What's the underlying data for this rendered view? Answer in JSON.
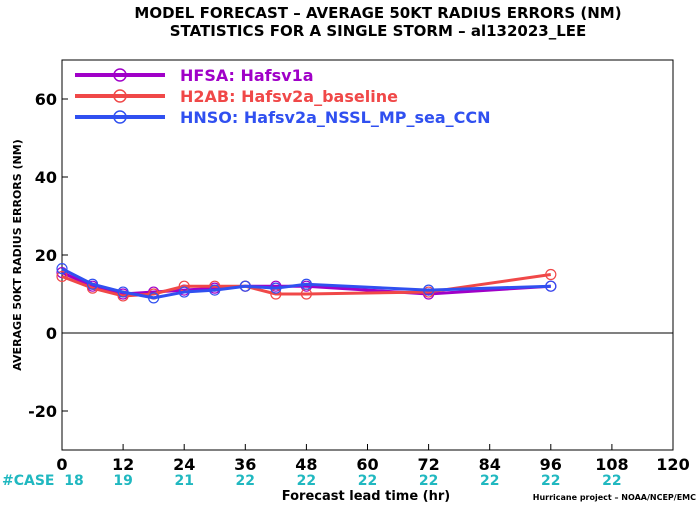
{
  "chart_data": {
    "type": "line",
    "title": "MODEL FORECAST – AVERAGE 50KT RADIUS ERRORS (NM)",
    "subtitle": "STATISTICS FOR A SINGLE STORM – al132023_LEE",
    "xlabel": "Forecast lead time (hr)",
    "ylabel": "AVERAGE 50KT RADIUS ERRORS (NM)",
    "xlim": [
      0,
      120
    ],
    "ylim": [
      -30,
      70
    ],
    "xticks": [
      0,
      12,
      24,
      36,
      48,
      60,
      72,
      84,
      96,
      108,
      120
    ],
    "yticks": [
      -20,
      0,
      20,
      40,
      60
    ],
    "zero_line": true,
    "grid": false,
    "legend_position": "top-left",
    "series": [
      {
        "name": "HFSA: Hafsv1a",
        "color": "#a000c8",
        "x": [
          0,
          6,
          12,
          18,
          24,
          30,
          36,
          42,
          48,
          72,
          96
        ],
        "y": [
          15.5,
          12,
          10,
          10.5,
          11,
          11.5,
          12,
          12,
          12,
          10,
          12
        ]
      },
      {
        "name": "H2AB: Hafsv2a_baseline",
        "color": "#f04848",
        "x": [
          0,
          6,
          12,
          18,
          24,
          30,
          36,
          42,
          48,
          72,
          96
        ],
        "y": [
          14.5,
          11.5,
          9.5,
          10,
          12,
          12,
          12,
          10,
          10,
          10.5,
          15
        ]
      },
      {
        "name": "HNSO: Hafsv2a_NSSL_MP_sea_CCN",
        "color": "#3050f0",
        "x": [
          0,
          6,
          12,
          18,
          24,
          30,
          36,
          42,
          48,
          72,
          96
        ],
        "y": [
          16.5,
          12.5,
          10.5,
          9,
          10.5,
          11,
          12,
          11.5,
          12.5,
          11,
          12
        ]
      }
    ],
    "cases": {
      "label": "#CASE",
      "x": [
        0,
        12,
        24,
        36,
        48,
        60,
        72,
        84,
        96,
        108
      ],
      "counts": [
        "18",
        "19",
        "21",
        "22",
        "22",
        "22",
        "22",
        "22",
        "22",
        "22"
      ]
    },
    "footer": "Hurricane project – NOAA/NCEP/EMC"
  }
}
